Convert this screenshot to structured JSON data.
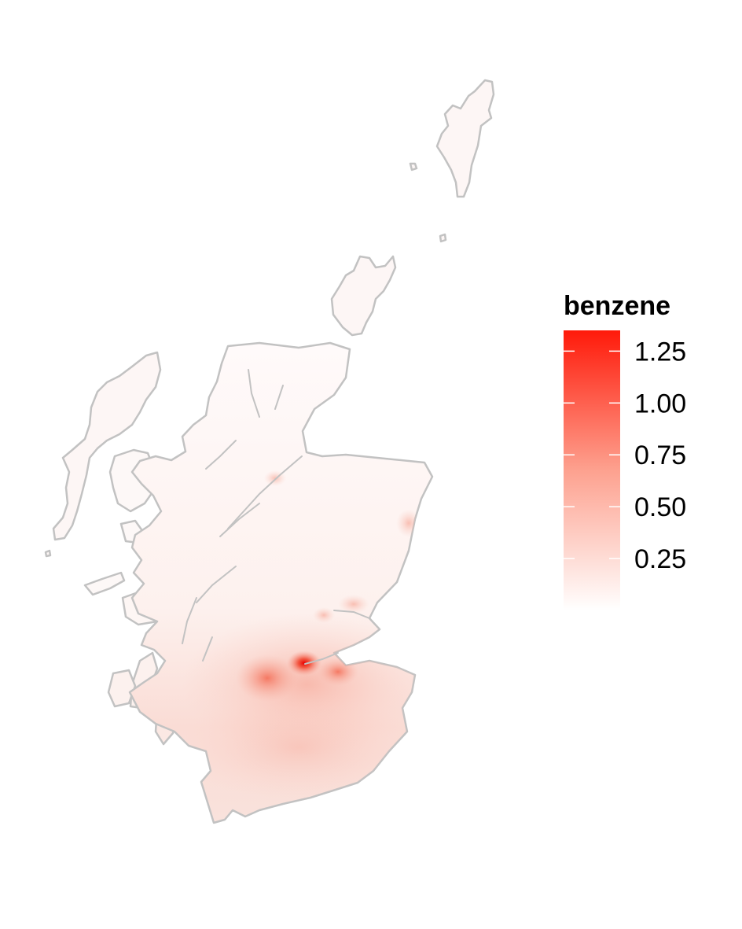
{
  "map": {
    "region": "Scotland",
    "border_color": "#c2c2c2",
    "background_color": "#ffffff"
  },
  "legend": {
    "title": "benzene",
    "color_low": "#ffffff",
    "color_high": "#ff1a0a",
    "range": [
      0.0,
      1.35
    ],
    "ticks": [
      {
        "value": 1.25,
        "label": "1.25"
      },
      {
        "value": 1.0,
        "label": "1.00"
      },
      {
        "value": 0.75,
        "label": "0.75"
      },
      {
        "value": 0.5,
        "label": "0.50"
      },
      {
        "value": 0.25,
        "label": "0.25"
      }
    ]
  }
}
